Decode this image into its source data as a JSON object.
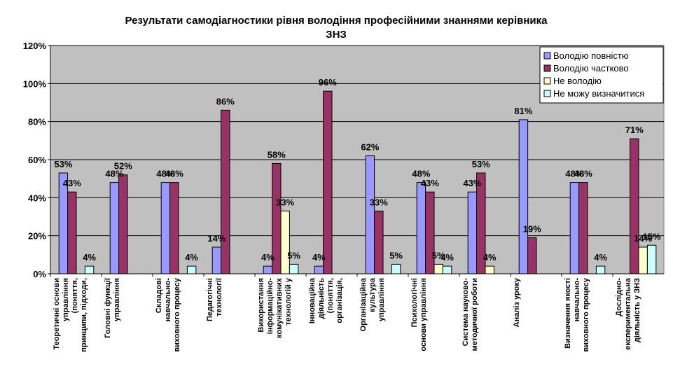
{
  "chart_data": {
    "type": "bar",
    "title_lines": [
      "Результати самодіагностики рівня володіння професійними знаннями керівника",
      "ЗНЗ"
    ],
    "ylim": [
      0,
      120
    ],
    "yticks": [
      0,
      20,
      40,
      60,
      80,
      100,
      120
    ],
    "ytick_suffix": "%",
    "grid": true,
    "legend_position": "top-right",
    "categories": [
      [
        "Теоретичні основи",
        "управління",
        "(поняття,",
        "принципи, підходи,"
      ],
      [
        "Головні функції",
        "управління"
      ],
      [
        "Складові",
        "навчально-",
        "виховного процесу"
      ],
      [
        "Педагогічні",
        "технології"
      ],
      [
        "Використання",
        "інформаційно-",
        "комунікативних",
        "технологій у"
      ],
      [
        "Інноваційна",
        "діяльність",
        "(поняття,",
        "організація,"
      ],
      [
        "Організаційна",
        "культура",
        "управління"
      ],
      [
        "Психологічні",
        "основи управління"
      ],
      [
        "Система науково-",
        "методичної роботи"
      ],
      [
        "Аналіз уроку"
      ],
      [
        "Визначення якості",
        "навчально-",
        "виховного процесу"
      ],
      [
        "Дослідно-",
        "експериментальна",
        "діяльність у ЗНЗ"
      ]
    ],
    "series": [
      {
        "name": "Володію повністю",
        "color": "#9999ff",
        "values": [
          53,
          48,
          48,
          14,
          4,
          4,
          62,
          48,
          43,
          81,
          48,
          0
        ]
      },
      {
        "name": "Володію частково",
        "color": "#993366",
        "values": [
          43,
          52,
          48,
          86,
          58,
          96,
          33,
          43,
          53,
          19,
          48,
          71
        ]
      },
      {
        "name": "Не володію",
        "color": "#ffffcc",
        "values": [
          0,
          0,
          0,
          0,
          33,
          0,
          0,
          5,
          4,
          0,
          0,
          14
        ]
      },
      {
        "name": "Не можу визначитися",
        "color": "#ccffff",
        "values": [
          4,
          0,
          4,
          0,
          5,
          0,
          5,
          4,
          0,
          0,
          4,
          15
        ]
      }
    ],
    "colors": {
      "plot_background": "#c0c0c0",
      "gridline": "#000000"
    }
  }
}
